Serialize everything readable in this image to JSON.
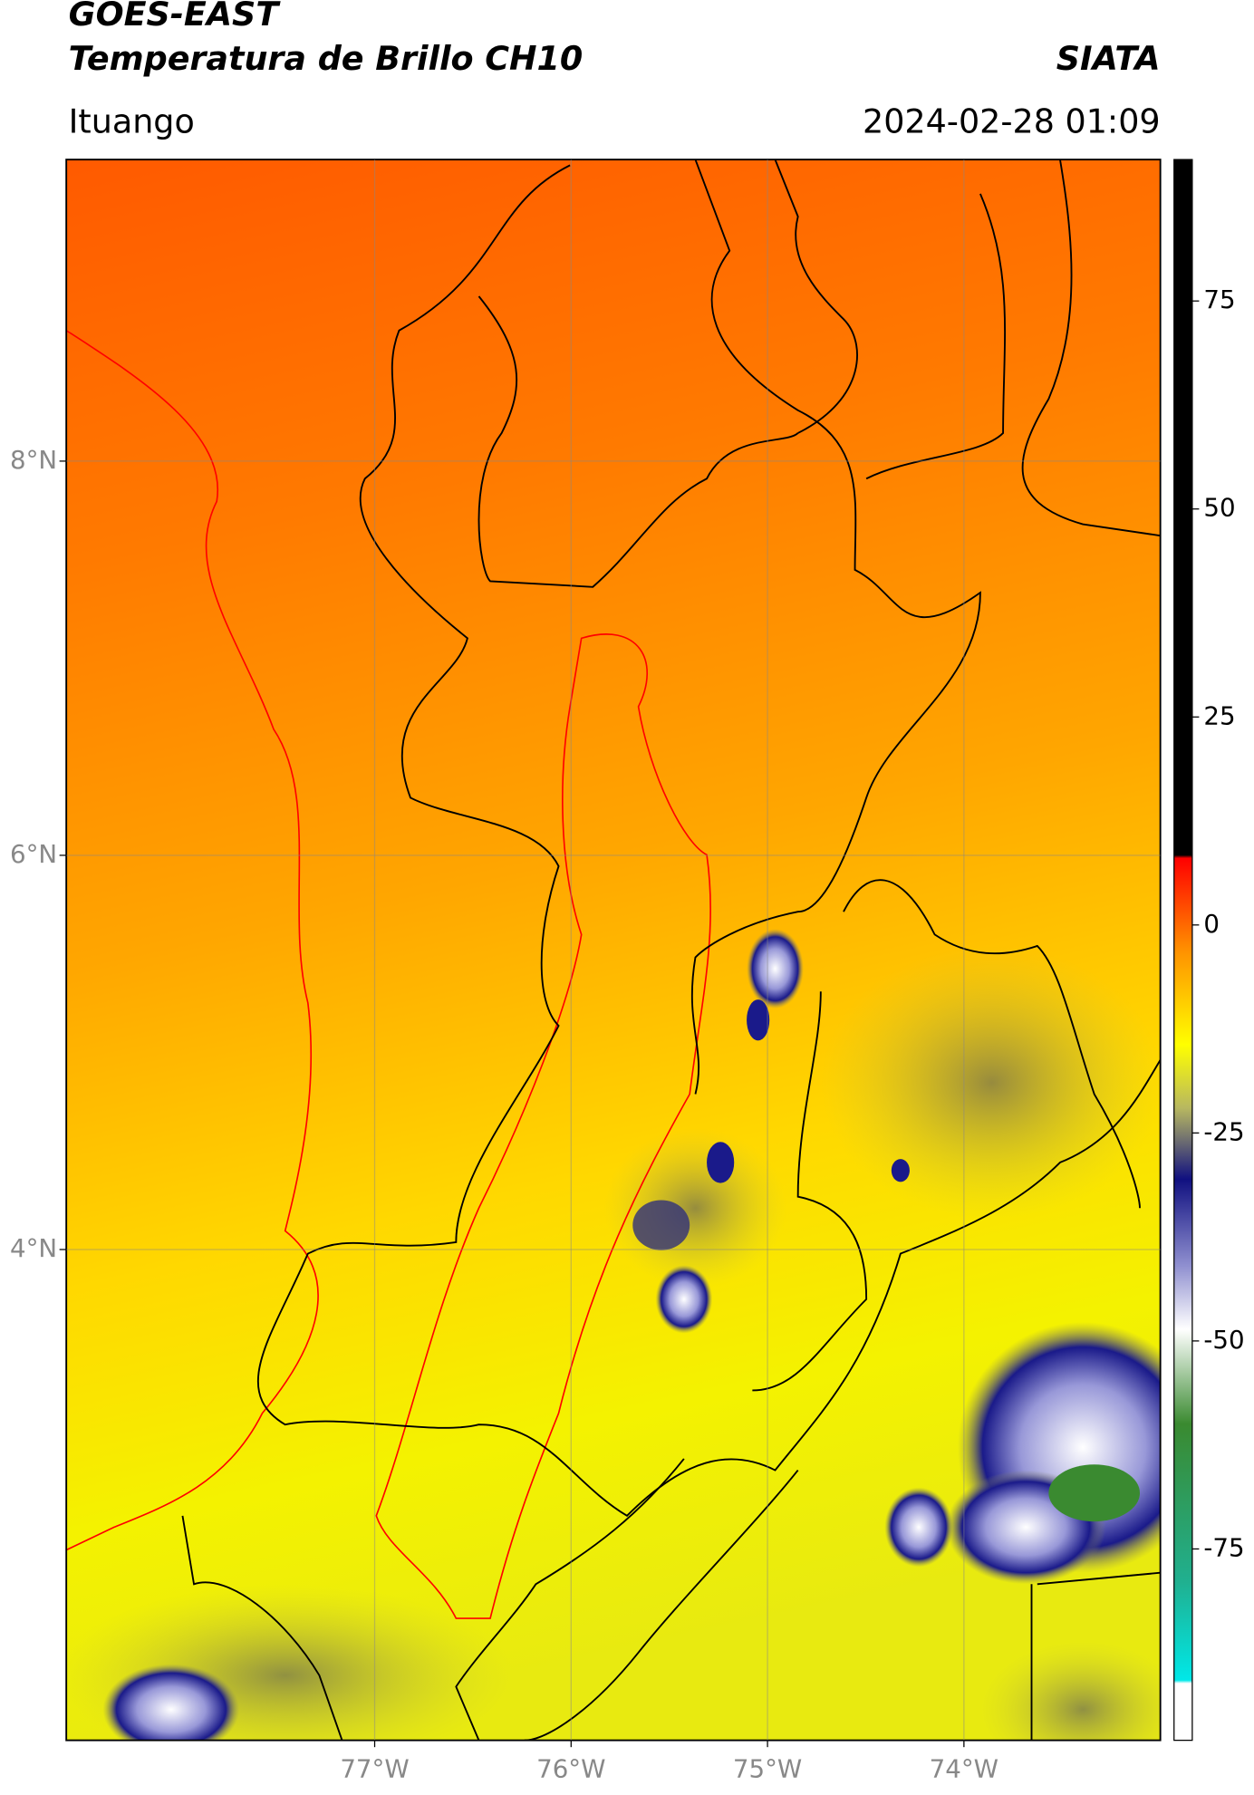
{
  "header": {
    "title": "GOES-EAST",
    "subtitle": "Temperatura de Brillo CH10",
    "source": "SIATA",
    "region": "Ituango",
    "timestamp": "2024-02-28 01:09"
  },
  "map": {
    "lonlim": [
      -78.57,
      -73.0
    ],
    "latlim": [
      1.51,
      9.53
    ],
    "lat_ticks": [
      {
        "value": 8,
        "label": "8°N"
      },
      {
        "value": 6,
        "label": "6°N"
      },
      {
        "value": 4,
        "label": "4°N"
      }
    ],
    "lon_ticks": [
      {
        "value": -77,
        "label": "77°W"
      },
      {
        "value": -76,
        "label": "76°W"
      },
      {
        "value": -75,
        "label": "75°W"
      },
      {
        "value": -74,
        "label": "74°W"
      }
    ],
    "grid": true
  },
  "colorbar": {
    "lim": [
      -98,
      92
    ],
    "ticks": [
      75,
      50,
      25,
      0,
      -25,
      -50,
      -75
    ]
  }
}
